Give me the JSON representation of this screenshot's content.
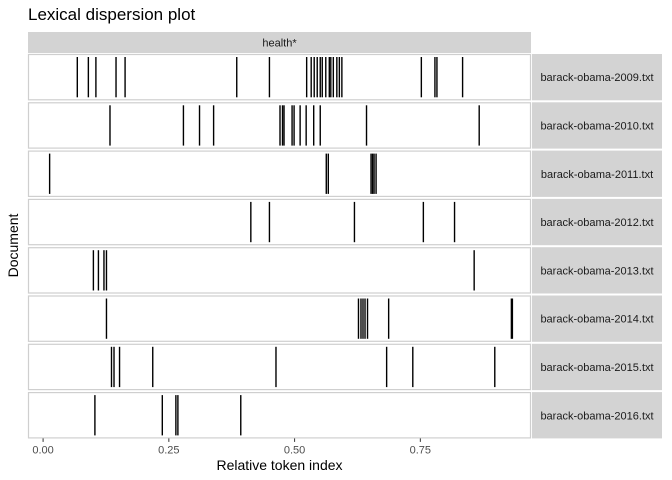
{
  "chart_data": {
    "type": "lexical-dispersion",
    "title": "Lexical dispersion plot",
    "xlabel": "Relative token index",
    "ylabel": "Document",
    "facet_label": "health*",
    "xlim": [
      -0.03,
      0.97
    ],
    "x_ticks": [
      0.0,
      0.25,
      0.5,
      0.75
    ],
    "x_tick_labels": [
      "0.00",
      "0.25",
      "0.50",
      "0.75"
    ],
    "grid": true,
    "colors": {
      "panel_border": "#cfcfcf",
      "strip_fill": "#d3d3d3",
      "tick_mark": "#000000",
      "axis_text": "#4d4d4d",
      "title_text": "#000000"
    },
    "documents": [
      {
        "name": "barack-obama-2009.txt",
        "positions": [
          0.068,
          0.09,
          0.105,
          0.145,
          0.163,
          0.385,
          0.45,
          0.524,
          0.533,
          0.539,
          0.545,
          0.551,
          0.555,
          0.562,
          0.569,
          0.572,
          0.577,
          0.584,
          0.589,
          0.594,
          0.752,
          0.779,
          0.783,
          0.834
        ]
      },
      {
        "name": "barack-obama-2010.txt",
        "positions": [
          0.133,
          0.279,
          0.311,
          0.339,
          0.471,
          0.476,
          0.479,
          0.495,
          0.499,
          0.511,
          0.523,
          0.538,
          0.551,
          0.643,
          0.867
        ]
      },
      {
        "name": "barack-obama-2011.txt",
        "positions": [
          0.013,
          0.563,
          0.567,
          0.652,
          0.655,
          0.658,
          0.662
        ]
      },
      {
        "name": "barack-obama-2012.txt",
        "positions": [
          0.413,
          0.45,
          0.619,
          0.756,
          0.818
        ]
      },
      {
        "name": "barack-obama-2013.txt",
        "positions": [
          0.1,
          0.11,
          0.121,
          0.126,
          0.857
        ]
      },
      {
        "name": "barack-obama-2014.txt",
        "positions": [
          0.126,
          0.627,
          0.632,
          0.636,
          0.64,
          0.645,
          0.687,
          0.931,
          0.933
        ]
      },
      {
        "name": "barack-obama-2015.txt",
        "positions": [
          0.136,
          0.141,
          0.152,
          0.218,
          0.463,
          0.683,
          0.735,
          0.898
        ]
      },
      {
        "name": "barack-obama-2016.txt",
        "positions": [
          0.103,
          0.237,
          0.264,
          0.268,
          0.393
        ]
      }
    ]
  }
}
